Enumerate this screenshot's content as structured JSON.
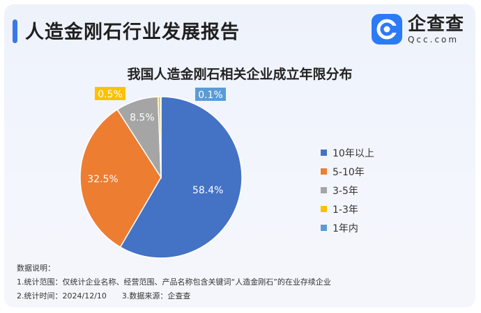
{
  "header": {
    "title": "人造金刚石行业发展报告",
    "logo_name": "企查查",
    "logo_domain": "Qcc.com"
  },
  "colors": {
    "accent": "#3b78e7",
    "logo": "#2b7bf6"
  },
  "chart_data": {
    "type": "pie",
    "title": "我国人造金刚石相关企业成立年限分布",
    "slices": [
      {
        "label": "10年以上",
        "value": 58.4,
        "display": "58.4%",
        "color": "#4472c4"
      },
      {
        "label": "5-10年",
        "value": 32.5,
        "display": "32.5%",
        "color": "#ed7d31"
      },
      {
        "label": "3-5年",
        "value": 8.5,
        "display": "8.5%",
        "color": "#a5a5a5"
      },
      {
        "label": "1-3年",
        "value": 0.5,
        "display": "0.5%",
        "color": "#ffc000"
      },
      {
        "label": "1年内",
        "value": 0.1,
        "display": "0.1%",
        "color": "#5b9bd5"
      }
    ],
    "legend_position": "right"
  },
  "notes": {
    "heading": "数据说明：",
    "scope": "1.统计范围：仅统计企业名称、经营范围、产品名称包含关键词“人造金刚石”的在业存续企业",
    "time": "2.统计时间：2024/12/10",
    "source": "3.数据来源：企查查"
  }
}
